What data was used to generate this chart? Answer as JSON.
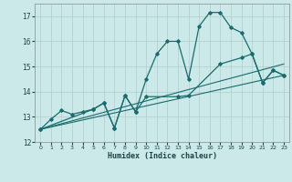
{
  "xlabel": "Humidex (Indice chaleur)",
  "background_color": "#cce9ea",
  "grid_color": "#b0cccc",
  "line_color": "#1a6b6b",
  "xlim": [
    -0.5,
    23.5
  ],
  "ylim": [
    12,
    17.5
  ],
  "yticks": [
    12,
    13,
    14,
    15,
    16,
    17
  ],
  "xticks": [
    0,
    1,
    2,
    3,
    4,
    5,
    6,
    7,
    8,
    9,
    10,
    11,
    12,
    13,
    14,
    15,
    16,
    17,
    18,
    19,
    20,
    21,
    22,
    23
  ],
  "series": {
    "line1_x": [
      0,
      1,
      2,
      3,
      4,
      5,
      6,
      7,
      8,
      9,
      10,
      11,
      12,
      13,
      14,
      15,
      16,
      17,
      18,
      19,
      20,
      21,
      22,
      23
    ],
    "line1_y": [
      12.5,
      12.9,
      13.25,
      13.1,
      13.2,
      13.3,
      13.55,
      12.55,
      13.85,
      13.2,
      14.5,
      15.5,
      16.0,
      16.0,
      14.5,
      16.6,
      17.15,
      17.15,
      16.55,
      16.35,
      15.5,
      14.35,
      14.85,
      14.65
    ],
    "line2_x": [
      0,
      5,
      6,
      7,
      8,
      9,
      10,
      13,
      14,
      17,
      19,
      20,
      21,
      22,
      23
    ],
    "line2_y": [
      12.5,
      13.3,
      13.55,
      12.55,
      13.85,
      13.2,
      13.8,
      13.8,
      13.85,
      15.1,
      15.35,
      15.5,
      14.35,
      14.85,
      14.65
    ],
    "line3_x": [
      0,
      23
    ],
    "line3_y": [
      12.5,
      15.1
    ],
    "line4_x": [
      0,
      23
    ],
    "line4_y": [
      12.5,
      14.65
    ]
  }
}
